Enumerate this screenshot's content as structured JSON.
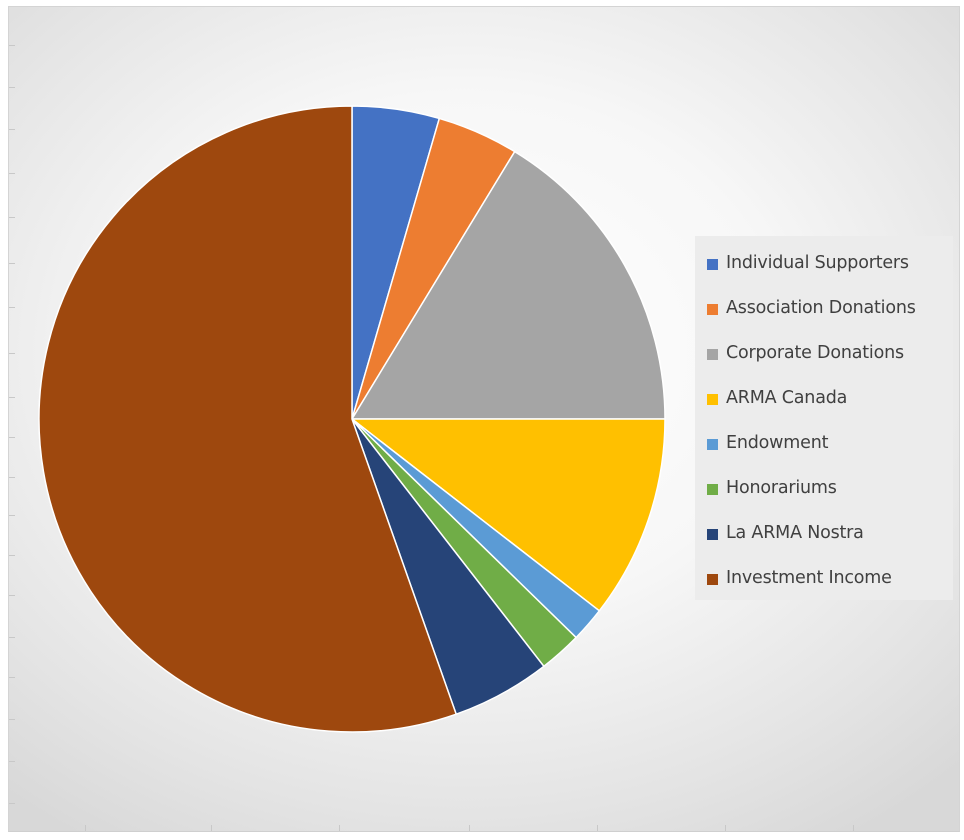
{
  "chart_data": {
    "type": "pie",
    "title": "",
    "legend_position": "right",
    "start_angle_deg": 0,
    "direction": "clockwise",
    "slices": [
      {
        "label": "Individual Supporters",
        "value": 4.5,
        "color": "#4472C4"
      },
      {
        "label": "Association Donations",
        "value": 4.2,
        "color": "#ED7D31"
      },
      {
        "label": "Corporate Donations",
        "value": 16.3,
        "color": "#A5A5A5"
      },
      {
        "label": "ARMA Canada",
        "value": 10.5,
        "color": "#FFC000"
      },
      {
        "label": "Endowment",
        "value": 1.8,
        "color": "#5B9BD5"
      },
      {
        "label": "Honorariums",
        "value": 2.2,
        "color": "#70AD47"
      },
      {
        "label": "La ARMA Nostra",
        "value": 5.1,
        "color": "#264478"
      },
      {
        "label": "Investment Income",
        "value": 55.4,
        "color": "#9E480E"
      }
    ]
  }
}
